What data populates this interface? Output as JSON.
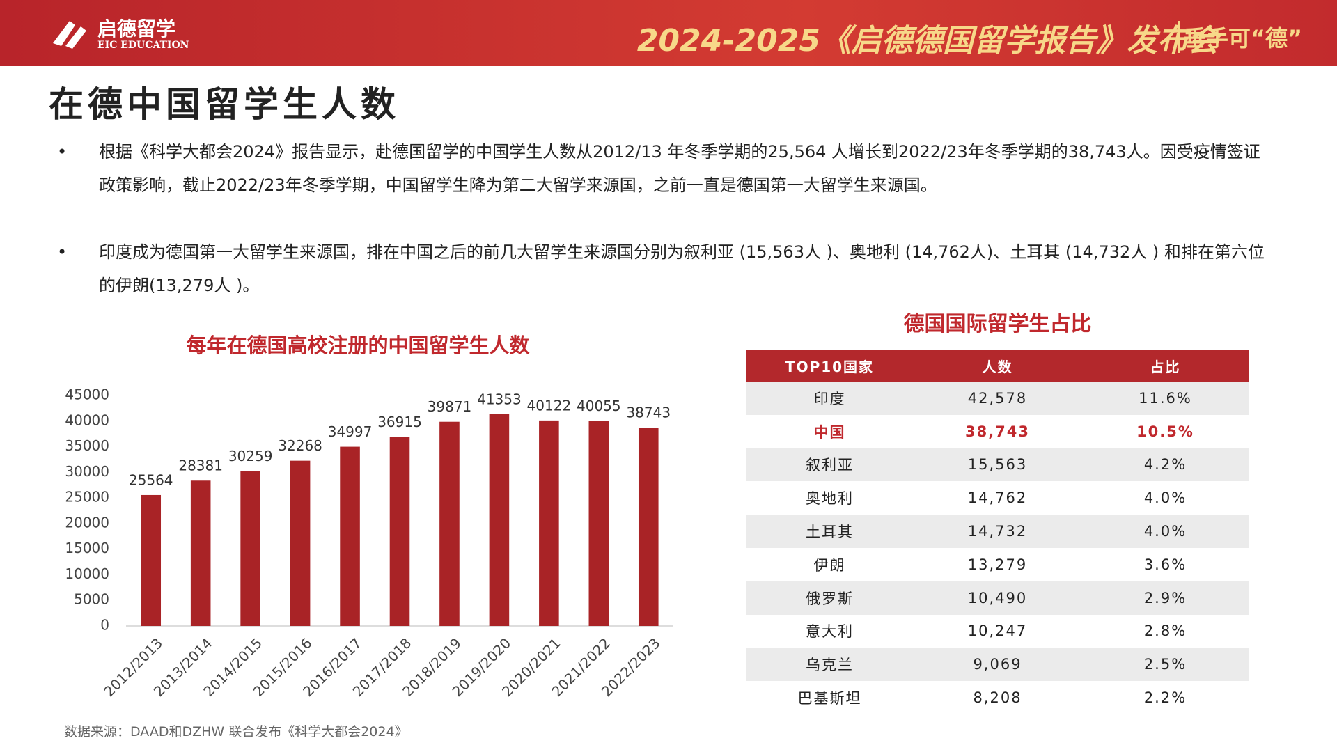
{
  "header": {
    "logo_cn": "启德留学",
    "logo_en": "EIC EDUCATION",
    "event": "2024-2025《启德德国留学报告》发布会",
    "slogan": "垂手可“德”"
  },
  "title": "在德中国留学生人数",
  "bullets": [
    "根据《科学大都会2024》报告显示，赴德国留学的中国学生人数从2012/13 年冬季学期的25,564 人增长到2022/23年冬季学期的38,743人。因受疫情签证政策影响，截止2022/23年冬季学期，中国留学生降为第二大留学来源国，之前一直是德国第一大留学生来源国。",
    "印度成为德国第一大留学生来源国，排在中国之后的前几大留学生来源国分别为叙利亚 (15,563人 )、奥地利 (14,762人)、土耳其 (14,732人 ) 和排在第六位的伊朗(13,279人 )。"
  ],
  "chart_data": {
    "type": "bar",
    "title": "每年在德国高校注册的中国留学生人数",
    "categories": [
      "2012/2013",
      "2013/2014",
      "2014/2015",
      "2015/2016",
      "2016/2017",
      "2017/2018",
      "2018/2019",
      "2019/2020",
      "2020/2021",
      "2021/2022",
      "2022/2023"
    ],
    "values": [
      25564,
      28381,
      30259,
      32268,
      34997,
      36915,
      39871,
      41353,
      40122,
      40055,
      38743
    ],
    "color": "#a92326",
    "ylim": [
      0,
      45000
    ],
    "yticks": [
      0,
      5000,
      10000,
      15000,
      20000,
      25000,
      30000,
      35000,
      40000,
      45000
    ],
    "grid": false
  },
  "table": {
    "title": "德国国际留学生占比",
    "header": [
      "TOP10国家",
      "人数",
      "占比"
    ],
    "rows": [
      [
        "印度",
        "42,578",
        "11.6%"
      ],
      [
        "中国",
        "38,743",
        "10.5%"
      ],
      [
        "叙利亚",
        "15,563",
        "4.2%"
      ],
      [
        "奥地利",
        "14,762",
        "4.0%"
      ],
      [
        "土耳其",
        "14,732",
        "4.0%"
      ],
      [
        "伊朗",
        "13,279",
        "3.6%"
      ],
      [
        "俄罗斯",
        "10,490",
        "2.9%"
      ],
      [
        "意大利",
        "10,247",
        "2.8%"
      ],
      [
        "乌克兰",
        "9,069",
        "2.5%"
      ],
      [
        "巴基斯坦",
        "8,208",
        "2.2%"
      ]
    ],
    "highlight_row": 1
  },
  "source": "数据来源：DAAD和DZHW 联合发布《科学大都会2024》"
}
